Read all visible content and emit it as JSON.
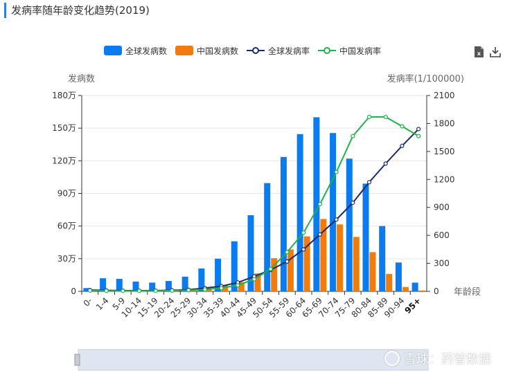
{
  "title": "发病率随年龄变化趋势(2019)",
  "legend": [
    {
      "label": "全球发病数",
      "type": "bar",
      "color": "#0a7cf0"
    },
    {
      "label": "中国发病数",
      "type": "bar",
      "color": "#f07b0e"
    },
    {
      "label": "全球发病率",
      "type": "line",
      "color": "#1a2a6c"
    },
    {
      "label": "中国发病率",
      "type": "line",
      "color": "#1fb24a"
    }
  ],
  "toolbar": {
    "export_icon": "excel-export-icon",
    "download_icon": "download-icon"
  },
  "watermark": "雪球：药智数据",
  "chart_data": {
    "type": "bar",
    "categories": [
      "0-",
      "1-4",
      "5-9",
      "10-14",
      "15-19",
      "20-24",
      "25-29",
      "30-34",
      "35-39",
      "40-44",
      "45-49",
      "50-54",
      "55-59",
      "60-64",
      "65-69",
      "70-74",
      "75-79",
      "80-84",
      "85-89",
      "90-94",
      "95+"
    ],
    "xlabel": "年龄段",
    "ylabel_left": "发病数",
    "ylabel_right": "发病率(1/100000)",
    "ylim_left": [
      0,
      1800000
    ],
    "ylim_right": [
      0,
      2100
    ],
    "left_ticks": [
      {
        "v": 0,
        "label": "0"
      },
      {
        "v": 300000,
        "label": "30万"
      },
      {
        "v": 600000,
        "label": "60万"
      },
      {
        "v": 900000,
        "label": "90万"
      },
      {
        "v": 1200000,
        "label": "120万"
      },
      {
        "v": 1500000,
        "label": "150万"
      },
      {
        "v": 1800000,
        "label": "180万"
      }
    ],
    "right_ticks": [
      {
        "v": 0,
        "label": "0"
      },
      {
        "v": 300,
        "label": "300"
      },
      {
        "v": 600,
        "label": "600"
      },
      {
        "v": 900,
        "label": "900"
      },
      {
        "v": 1200,
        "label": "1200"
      },
      {
        "v": 1500,
        "label": "1500"
      },
      {
        "v": 1800,
        "label": "1800"
      },
      {
        "v": 2100,
        "label": "2100"
      }
    ],
    "series": [
      {
        "name": "全球发病数",
        "type": "bar",
        "axis": "left",
        "color": "#0a7cf0",
        "values": [
          30000,
          120000,
          115000,
          90000,
          80000,
          95000,
          135000,
          210000,
          300000,
          460000,
          700000,
          995000,
          1235000,
          1445000,
          1600000,
          1455000,
          1220000,
          990000,
          600000,
          265000,
          80000
        ]
      },
      {
        "name": "中国发病数",
        "type": "bar",
        "axis": "left",
        "color": "#f07b0e",
        "values": [
          3000,
          15000,
          12000,
          10000,
          9000,
          12000,
          22000,
          38000,
          55000,
          85000,
          165000,
          305000,
          385000,
          505000,
          665000,
          615000,
          500000,
          360000,
          160000,
          40000,
          8000
        ]
      },
      {
        "name": "全球发病率",
        "type": "line",
        "axis": "right",
        "color": "#1a2a6c",
        "values": [
          15,
          10,
          8,
          7,
          8,
          12,
          18,
          35,
          55,
          95,
          160,
          230,
          320,
          450,
          610,
          770,
          950,
          1170,
          1370,
          1560,
          1740
        ]
      },
      {
        "name": "中国发病率",
        "type": "line",
        "axis": "right",
        "color": "#1fb24a",
        "values": [
          10,
          6,
          5,
          5,
          5,
          8,
          12,
          20,
          35,
          65,
          130,
          240,
          420,
          630,
          935,
          1280,
          1665,
          1870,
          1870,
          1770,
          1665
        ]
      }
    ]
  }
}
